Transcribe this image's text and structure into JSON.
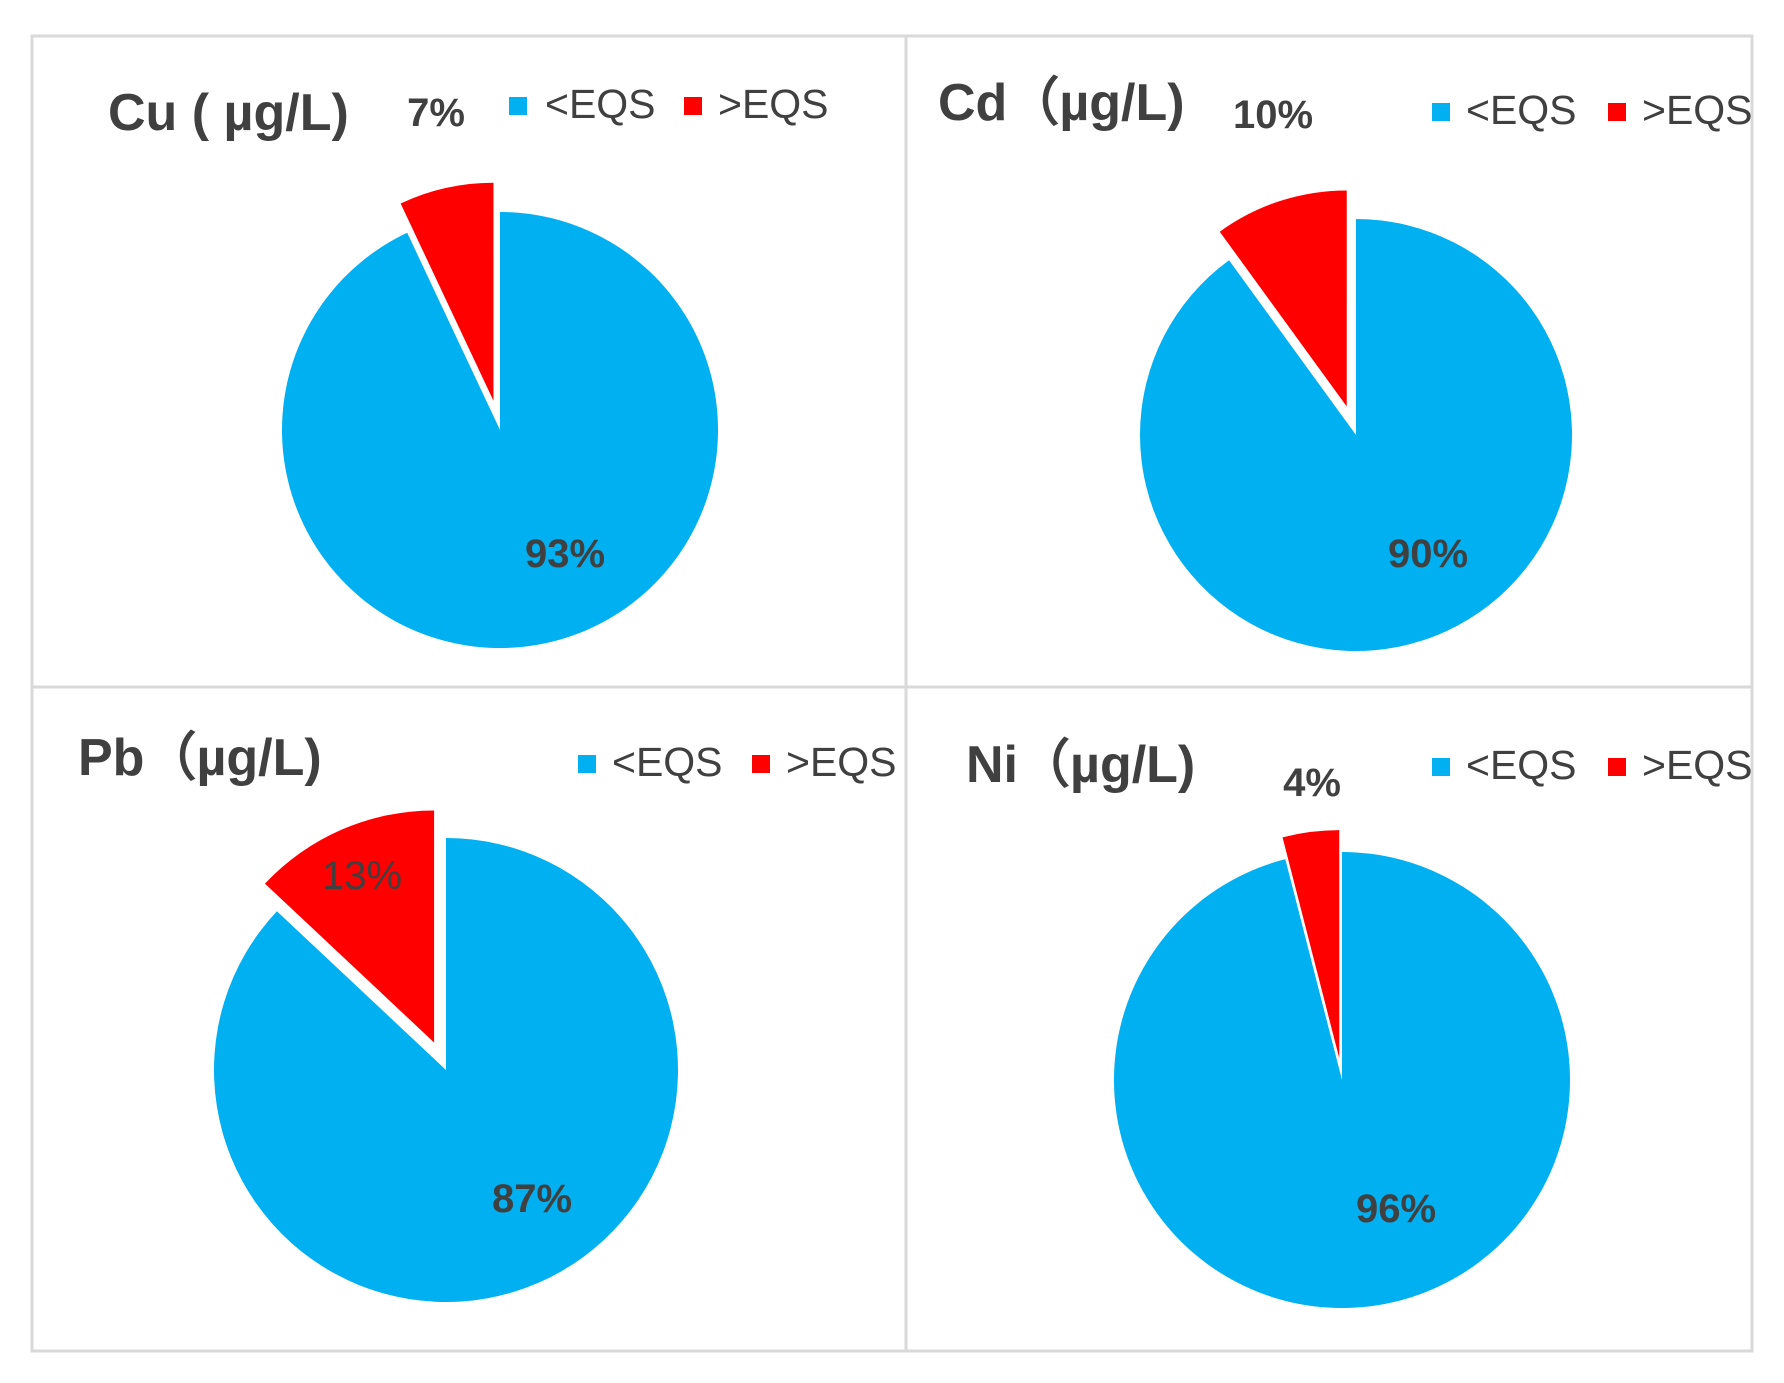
{
  "legend_categories": [
    "<EQS",
    ">EQS"
  ],
  "colors": {
    "below": "#00b0f0",
    "above": "#ff0000"
  },
  "chart_data": [
    {
      "type": "pie",
      "title": "Cu ( µg/L)",
      "categories": [
        "<EQS",
        ">EQS"
      ],
      "values": [
        93,
        7
      ],
      "labels": [
        "93%",
        "7%"
      ],
      "exploded": ">EQS",
      "legend": "top"
    },
    {
      "type": "pie",
      "title": "Cd（µg/L)",
      "categories": [
        "<EQS",
        ">EQS"
      ],
      "values": [
        90,
        10
      ],
      "labels": [
        "90%",
        "10%"
      ],
      "exploded": ">EQS",
      "legend": "top"
    },
    {
      "type": "pie",
      "title": "Pb（µg/L)",
      "categories": [
        "<EQS",
        ">EQS"
      ],
      "values": [
        87,
        13
      ],
      "labels": [
        "87%",
        "13%"
      ],
      "exploded": ">EQS",
      "legend": "top"
    },
    {
      "type": "pie",
      "title": "Ni（µg/L)",
      "categories": [
        "<EQS",
        ">EQS"
      ],
      "values": [
        96,
        4
      ],
      "labels": [
        "96%",
        "4%"
      ],
      "exploded": ">EQS",
      "legend": "top"
    }
  ]
}
